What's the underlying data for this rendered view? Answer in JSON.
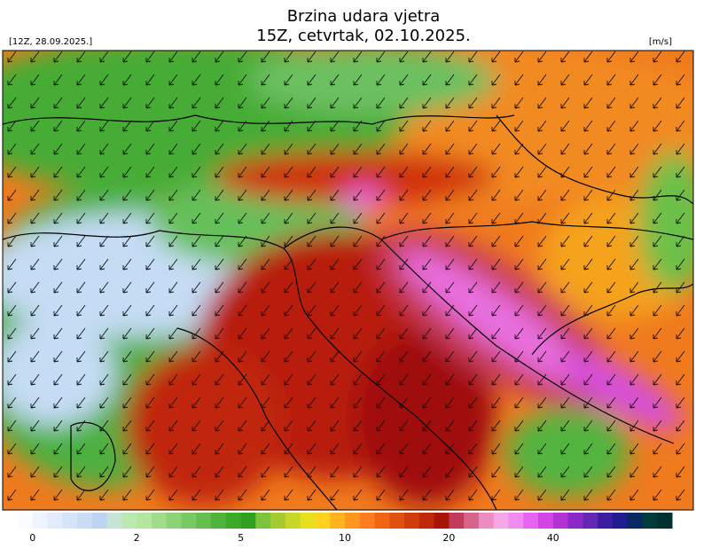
{
  "header": {
    "title": "Brzina udara vjetra",
    "subtitle": "15Z, cetvrtak, 02.10.2025.",
    "run": "[12Z, 28.09.2025.]",
    "unit": "[m/s]"
  },
  "colorbar": {
    "ticks": [
      0,
      2,
      5,
      10,
      20,
      40
    ],
    "colors": [
      "#fbfcff",
      "#eef4fd",
      "#e2ecfb",
      "#d6e4f9",
      "#cadcf6",
      "#bed4f3",
      "#c8e4d8",
      "#bce8b4",
      "#b4e6a0",
      "#a0dc8c",
      "#8cd278",
      "#78c864",
      "#64be50",
      "#50b43c",
      "#3caa28",
      "#2ea020",
      "#7cc43c",
      "#a4cc32",
      "#c8d628",
      "#e8e01e",
      "#ffd21e",
      "#ffb41e",
      "#ff961e",
      "#ff7d1e",
      "#f06414",
      "#e0500f",
      "#d03c0a",
      "#c02808",
      "#a81406",
      "#c03c5a",
      "#d8648c",
      "#ec8cc0",
      "#f5a8e6",
      "#f08cf0",
      "#e664f0",
      "#d246e6",
      "#b432d2",
      "#8c28c8",
      "#6428b4",
      "#3c1ea0",
      "#1e1e8c",
      "#0a2864",
      "#003c3c",
      "#003030"
    ]
  }
}
